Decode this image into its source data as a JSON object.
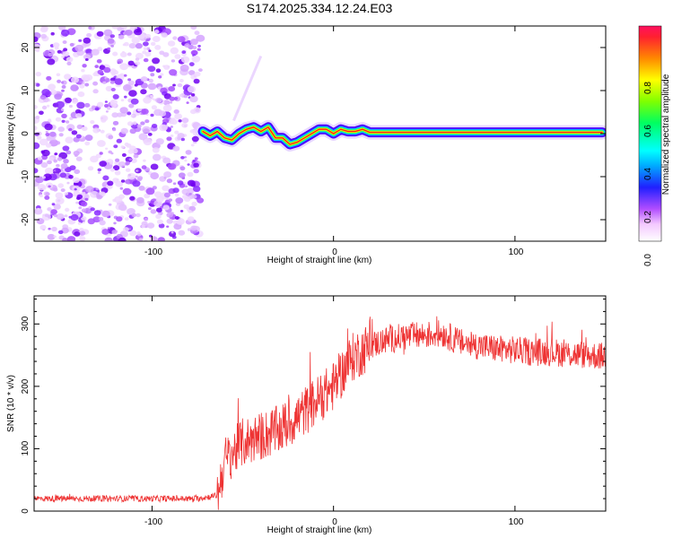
{
  "title": "S174.2025.334.12.24.E03",
  "chart_data": [
    {
      "type": "heatmap",
      "name": "spectrogram",
      "xlabel": "Height of straight line (km)",
      "ylabel": "Frequency (Hz)",
      "xlim": [
        -165,
        150
      ],
      "ylim": [
        -25,
        25
      ],
      "xticks": [
        -100,
        0,
        100
      ],
      "yticks": [
        -20,
        -10,
        0,
        10,
        20
      ],
      "noise_region_x": [
        -165,
        -73
      ],
      "trace": [
        [
          -72,
          0.5
        ],
        [
          -68,
          -0.5
        ],
        [
          -64,
          0.5
        ],
        [
          -60,
          -1
        ],
        [
          -56,
          -1.5
        ],
        [
          -52,
          0
        ],
        [
          -48,
          1
        ],
        [
          -44,
          1.5
        ],
        [
          -40,
          0.5
        ],
        [
          -36,
          1.5
        ],
        [
          -32,
          -1
        ],
        [
          -28,
          -1
        ],
        [
          -24,
          -2.5
        ],
        [
          -20,
          -2
        ],
        [
          -16,
          -1
        ],
        [
          -12,
          0
        ],
        [
          -8,
          1
        ],
        [
          -4,
          1
        ],
        [
          0,
          0
        ],
        [
          4,
          1
        ],
        [
          8,
          0.5
        ],
        [
          12,
          0.5
        ],
        [
          16,
          1
        ],
        [
          20,
          0.3
        ],
        [
          40,
          0.3
        ],
        [
          60,
          0.3
        ],
        [
          80,
          0.3
        ],
        [
          100,
          0.3
        ],
        [
          120,
          0.3
        ],
        [
          148,
          0.3
        ]
      ],
      "colorbar": {
        "label": "Normalized spectral amplitude",
        "ticks": [
          0.0,
          0.2,
          0.4,
          0.6,
          0.8
        ],
        "range": [
          0,
          1
        ]
      }
    },
    {
      "type": "line",
      "name": "snr",
      "xlabel": "Height of straight line (km)",
      "ylabel": "SNR (10 * v/v)",
      "xlim": [
        -165,
        150
      ],
      "ylim": [
        0,
        345
      ],
      "xticks": [
        -100,
        0,
        100
      ],
      "yticks": [
        0,
        100,
        200,
        300
      ],
      "color": "#ee3333",
      "series": [
        {
          "name": "SNR",
          "x": [
            -165,
            -150,
            -130,
            -110,
            -90,
            -75,
            -64,
            -60,
            -50,
            -40,
            -30,
            -20,
            -10,
            0,
            10,
            20,
            30,
            40,
            50,
            60,
            70,
            80,
            90,
            100,
            110,
            120,
            130,
            140,
            150
          ],
          "values": [
            20,
            20,
            20,
            20,
            20,
            20,
            25,
            80,
            110,
            120,
            130,
            150,
            175,
            200,
            245,
            265,
            275,
            280,
            282,
            285,
            270,
            265,
            260,
            258,
            255,
            255,
            252,
            250,
            248
          ]
        }
      ]
    }
  ],
  "tick_labels": {
    "top_x": [
      "-100",
      "0",
      "100"
    ],
    "top_y": [
      "-20",
      "-10",
      "0",
      "10",
      "20"
    ],
    "cbar": [
      "0.0",
      "0.2",
      "0.4",
      "0.6",
      "0.8"
    ],
    "bottom_x": [
      "-100",
      "0",
      "100"
    ],
    "bottom_y": [
      "0",
      "100",
      "200",
      "300"
    ]
  }
}
